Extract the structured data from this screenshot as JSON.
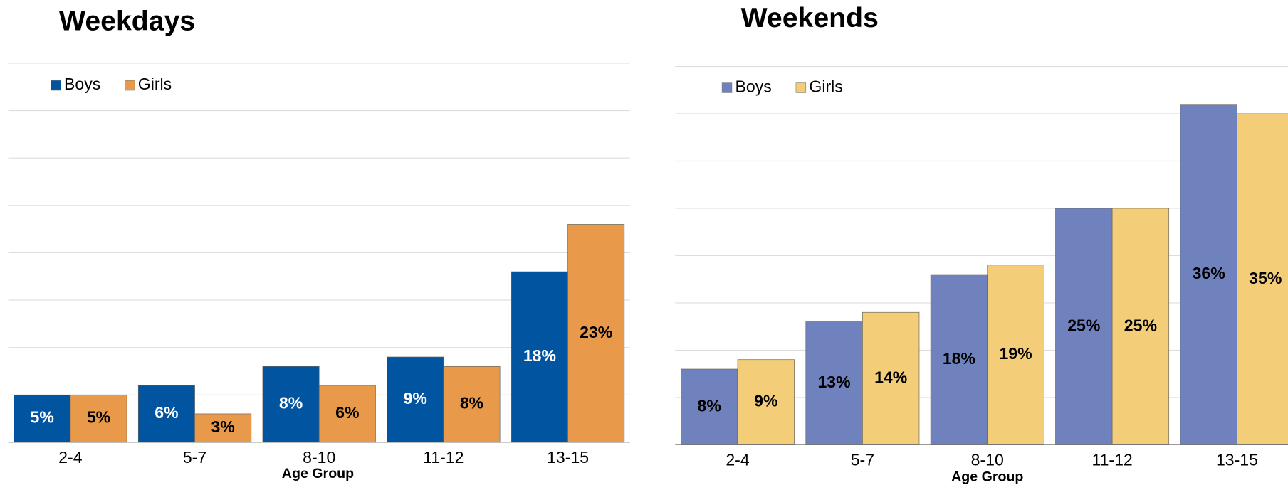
{
  "chart_data": [
    {
      "type": "bar",
      "title": "Weekdays",
      "x_label": "Age Group",
      "categories": [
        "2-4",
        "5-7",
        "8-10",
        "11-12",
        "13-15"
      ],
      "series": [
        {
          "name": "Boys",
          "color": "#0054a0",
          "values": [
            5,
            6,
            8,
            9,
            18
          ],
          "value_labels": [
            "5%",
            "6%",
            "8%",
            "9%",
            "18%"
          ]
        },
        {
          "name": "Girls",
          "color": "#e8994a",
          "values": [
            5,
            3,
            6,
            8,
            23
          ],
          "value_labels": [
            "5%",
            "3%",
            "6%",
            "8%",
            "23%"
          ]
        }
      ],
      "ylim": [
        0,
        40
      ],
      "yticks": [
        0,
        5,
        10,
        15,
        20,
        25,
        30,
        35,
        40
      ],
      "grid": true,
      "legend": "top-left"
    },
    {
      "type": "bar",
      "title": "Weekends",
      "x_label": "Age Group",
      "categories": [
        "2-4",
        "5-7",
        "8-10",
        "11-12",
        "13-15"
      ],
      "series": [
        {
          "name": "Boys",
          "color": "#7082bd",
          "values": [
            8,
            13,
            18,
            25,
            36
          ],
          "value_labels": [
            "8%",
            "13%",
            "18%",
            "25%",
            "36%"
          ]
        },
        {
          "name": "Girls",
          "color": "#f4cd79",
          "values": [
            9,
            14,
            19,
            25,
            35
          ],
          "value_labels": [
            "9%",
            "14%",
            "19%",
            "25%",
            "35%"
          ]
        }
      ],
      "ylim": [
        0,
        40
      ],
      "yticks": [
        0,
        5,
        10,
        15,
        20,
        25,
        30,
        35,
        40
      ],
      "grid": true,
      "legend": "top-left"
    }
  ]
}
